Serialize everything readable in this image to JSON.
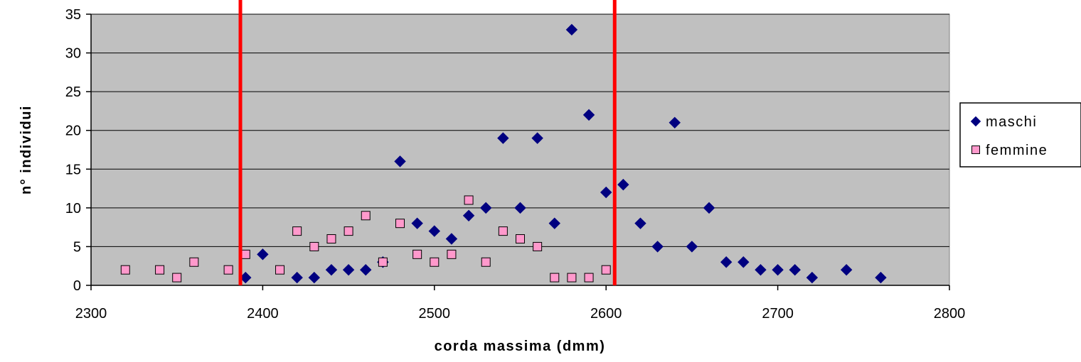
{
  "chart_data": {
    "type": "scatter",
    "xlabel": "corda massima (dmm)",
    "ylabel": "n° individui",
    "xlim": [
      2300,
      2800
    ],
    "ylim": [
      0,
      35
    ],
    "x_ticks": [
      2300,
      2400,
      2500,
      2600,
      2700,
      2800
    ],
    "y_ticks": [
      0,
      5,
      10,
      15,
      20,
      25,
      30,
      35
    ],
    "grid": "horizontal",
    "plot_background": "#c0c0c0",
    "legend_position": "right",
    "series": [
      {
        "name": "maschi",
        "marker": "diamond",
        "color": "#000080",
        "points": [
          [
            2390,
            1
          ],
          [
            2400,
            4
          ],
          [
            2420,
            1
          ],
          [
            2430,
            1
          ],
          [
            2440,
            2
          ],
          [
            2450,
            2
          ],
          [
            2460,
            2
          ],
          [
            2470,
            3
          ],
          [
            2480,
            16
          ],
          [
            2490,
            8
          ],
          [
            2500,
            7
          ],
          [
            2510,
            6
          ],
          [
            2520,
            9
          ],
          [
            2530,
            10
          ],
          [
            2540,
            19
          ],
          [
            2550,
            10
          ],
          [
            2560,
            19
          ],
          [
            2570,
            8
          ],
          [
            2580,
            33
          ],
          [
            2590,
            22
          ],
          [
            2600,
            12
          ],
          [
            2610,
            13
          ],
          [
            2620,
            8
          ],
          [
            2630,
            5
          ],
          [
            2640,
            21
          ],
          [
            2650,
            5
          ],
          [
            2660,
            10
          ],
          [
            2670,
            3
          ],
          [
            2680,
            3
          ],
          [
            2690,
            2
          ],
          [
            2700,
            2
          ],
          [
            2710,
            2
          ],
          [
            2720,
            1
          ],
          [
            2740,
            2
          ],
          [
            2760,
            1
          ]
        ]
      },
      {
        "name": "femmine",
        "marker": "square",
        "color": "#ff99cc",
        "points": [
          [
            2320,
            2
          ],
          [
            2340,
            2
          ],
          [
            2350,
            1
          ],
          [
            2360,
            3
          ],
          [
            2380,
            2
          ],
          [
            2390,
            4
          ],
          [
            2410,
            2
          ],
          [
            2420,
            7
          ],
          [
            2430,
            5
          ],
          [
            2440,
            6
          ],
          [
            2450,
            7
          ],
          [
            2460,
            9
          ],
          [
            2470,
            3
          ],
          [
            2480,
            8
          ],
          [
            2490,
            4
          ],
          [
            2500,
            3
          ],
          [
            2510,
            4
          ],
          [
            2520,
            11
          ],
          [
            2530,
            3
          ],
          [
            2540,
            7
          ],
          [
            2550,
            6
          ],
          [
            2560,
            5
          ],
          [
            2570,
            1
          ],
          [
            2580,
            1
          ],
          [
            2590,
            1
          ],
          [
            2600,
            2
          ]
        ]
      }
    ],
    "reference_lines": [
      {
        "axis": "x",
        "value": 2387,
        "color": "#ff0000"
      },
      {
        "axis": "x",
        "value": 2605,
        "color": "#ff0000"
      }
    ]
  }
}
